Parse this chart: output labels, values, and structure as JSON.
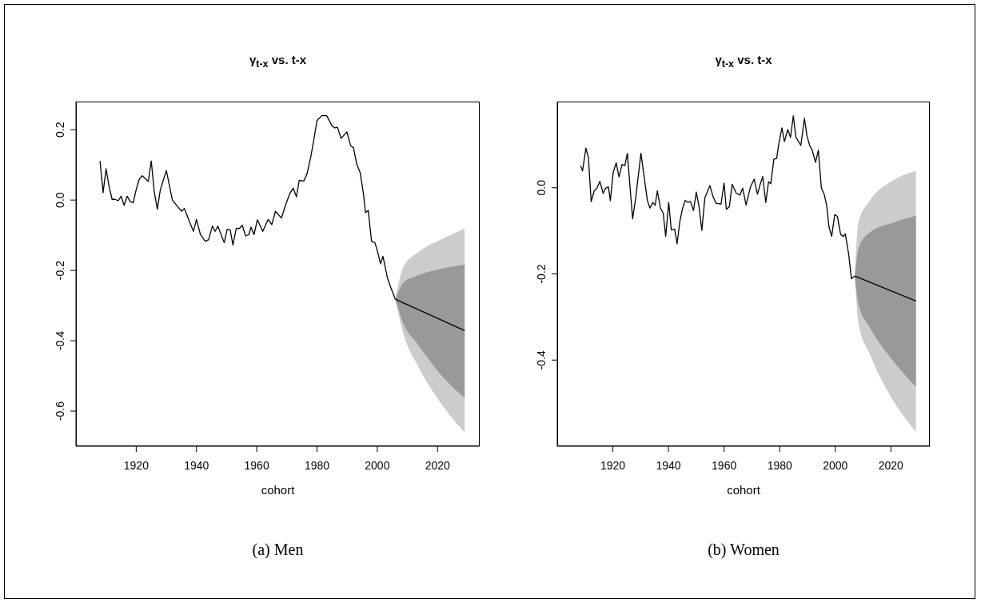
{
  "chart_data": [
    {
      "type": "line",
      "title": "γ$_{t-x}$ vs. t-x",
      "xlabel": "cohort",
      "xlim": [
        1900,
        2034
      ],
      "xticks": [
        1920,
        1940,
        1960,
        1980,
        2000,
        2020
      ],
      "ylim": [
        -0.7,
        0.28
      ],
      "yticks": [
        -0.6,
        -0.4,
        -0.2,
        {
          "value": 0,
          "label": "0.0"
        },
        0.2
      ],
      "annotations": [
        "(a) Men"
      ],
      "series": [
        {
          "type": "area",
          "color": "#cccccc",
          "x": [
            2006,
            2008.8,
            2013.2,
            2022,
            2029
          ],
          "values": [
            null,
            null,
            null,
            null,
            null
          ],
          "lower": [
            -0.282,
            -0.384,
            -0.467,
            -0.588,
            -0.661
          ],
          "upper": [
            -0.282,
            -0.188,
            -0.151,
            -0.109,
            -0.081
          ]
        },
        {
          "type": "area",
          "color": "#999999",
          "x": [
            2006,
            2008.8,
            2013.2,
            2022,
            2029
          ],
          "values": [
            null,
            null,
            null,
            null,
            null
          ],
          "lower": [
            -0.282,
            -0.354,
            -0.407,
            -0.505,
            -0.563
          ],
          "upper": [
            -0.282,
            -0.234,
            -0.215,
            -0.194,
            -0.183
          ]
        },
        {
          "type": "line",
          "color": "#000000",
          "x": [
            2006,
            2029
          ],
          "values": [
            -0.282,
            -0.371
          ]
        },
        {
          "type": "line",
          "color": "#000000",
          "x": [
            1908,
            1909,
            1910,
            1911,
            1912,
            1913,
            1914,
            1915,
            1916,
            1917,
            1918,
            1919,
            1920,
            1921,
            1922,
            1924,
            1925,
            1926,
            1927,
            1928,
            1930,
            1932,
            1935,
            1936,
            1937.6,
            1939,
            1940,
            1941.3,
            1942.9,
            1944,
            1945.3,
            1946.2,
            1947.1,
            1949.2,
            1950.2,
            1951.2,
            1952.1,
            1953.2,
            1954.2,
            1955.2,
            1956.3,
            1957.4,
            1958.1,
            1959.1,
            1960.2,
            1962,
            1963.8,
            1965,
            1966.2,
            1968.2,
            1969.7,
            1971,
            1972.1,
            1973.2,
            1974.1,
            1975.6,
            1976.7,
            1977.9,
            1978.9,
            1980,
            1981.6,
            1983.2,
            1985,
            1986,
            1986.8,
            1988,
            1989.9,
            1991.2,
            1992.1,
            1993.2,
            1994.3,
            1995.4,
            1996.1,
            1997,
            1998.1,
            1999.2,
            2000,
            2001.1,
            2001.9,
            2003.4,
            2004.4,
            2006
          ],
          "values": [
            0.111,
            0.021,
            0.089,
            0.038,
            0.002,
            0.002,
            -0.002,
            0.011,
            -0.015,
            0.011,
            -0.004,
            -0.008,
            0.03,
            0.059,
            0.069,
            0.053,
            0.111,
            0.023,
            -0.026,
            0.029,
            0.084,
            0.0,
            -0.032,
            -0.024,
            -0.06,
            -0.089,
            -0.055,
            -0.098,
            -0.117,
            -0.113,
            -0.074,
            -0.089,
            -0.074,
            -0.121,
            -0.083,
            -0.085,
            -0.128,
            -0.08,
            -0.081,
            -0.072,
            -0.102,
            -0.098,
            -0.077,
            -0.098,
            -0.056,
            -0.089,
            -0.055,
            -0.07,
            -0.032,
            -0.051,
            -0.011,
            0.019,
            0.034,
            0.009,
            0.056,
            0.054,
            0.075,
            0.121,
            0.169,
            0.226,
            0.24,
            0.24,
            0.211,
            0.205,
            0.207,
            0.175,
            0.194,
            0.154,
            0.149,
            0.102,
            0.079,
            0.019,
            -0.036,
            -0.029,
            -0.117,
            -0.121,
            -0.143,
            -0.181,
            -0.16,
            -0.222,
            -0.247,
            -0.282
          ]
        }
      ]
    },
    {
      "type": "line",
      "title": "γ$_{t-x}$ vs. t-x",
      "xlabel": "cohort",
      "xlim": [
        1900,
        2034
      ],
      "xticks": [
        1920,
        1940,
        1960,
        1980,
        2000,
        2020
      ],
      "ylim": [
        -0.6,
        0.2
      ],
      "yticks": [
        -0.4,
        -0.2,
        {
          "value": 0,
          "label": "0.0"
        }
      ],
      "annotations": [
        "(b) Women"
      ],
      "series": [
        {
          "type": "area",
          "color": "#cccccc",
          "x": [
            2007,
            2008.4,
            2012.2,
            2020.8,
            2029
          ],
          "values": [
            null,
            null,
            null,
            null,
            null
          ],
          "lower": [
            -0.205,
            -0.316,
            -0.383,
            -0.494,
            -0.566
          ],
          "upper": [
            -0.205,
            -0.078,
            -0.032,
            0.017,
            0.039
          ]
        },
        {
          "type": "area",
          "color": "#999999",
          "x": [
            2007,
            2008.4,
            2012.2,
            2020.8,
            2029
          ],
          "values": [
            null,
            null,
            null,
            null,
            null
          ],
          "lower": [
            -0.205,
            -0.273,
            -0.322,
            -0.402,
            -0.462
          ],
          "upper": [
            -0.205,
            -0.139,
            -0.105,
            -0.081,
            -0.065
          ]
        },
        {
          "type": "line",
          "color": "#000000",
          "x": [
            2007,
            2029
          ],
          "values": [
            -0.205,
            -0.263
          ]
        },
        {
          "type": "line",
          "color": "#000000",
          "x": [
            1908.4,
            1909.1,
            1910.3,
            1911.2,
            1912.2,
            1913.3,
            1914.3,
            1915.3,
            1916.5,
            1917.4,
            1918.4,
            1919.1,
            1920.1,
            1921.2,
            1922.2,
            1923.3,
            1924.3,
            1925.2,
            1927.1,
            1928.2,
            1930.1,
            1932.4,
            1933.3,
            1934.4,
            1935.2,
            1936,
            1937.1,
            1938.1,
            1939,
            1940.1,
            1941,
            1942.2,
            1943.1,
            1944.1,
            1945,
            1946,
            1946.9,
            1947.9,
            1949,
            1950,
            1951,
            1952,
            1953.1,
            1954.9,
            1956,
            1957.1,
            1958.9,
            1960,
            1960.8,
            1961.9,
            1962.9,
            1964.4,
            1965.7,
            1966.7,
            1967.9,
            1969.5,
            1970.8,
            1972,
            1973,
            1973.9,
            1975,
            1976,
            1976.8,
            1977.9,
            1978.9,
            1979.8,
            1980.8,
            1981.7,
            1982.9,
            1983.9,
            1984.9,
            1985.8,
            1987.6,
            1988.9,
            1989.8,
            1990.8,
            1991.7,
            1992.9,
            1993.9,
            1995,
            1996,
            1996.9,
            1997.7,
            1998.7,
            1999.8,
            2000.8,
            2001.9,
            2002.9,
            2003.6,
            2004.8,
            2005.8,
            2007
          ],
          "values": [
            0.051,
            0.039,
            0.092,
            0.07,
            -0.032,
            -0.007,
            -0.001,
            0.015,
            -0.013,
            -0.001,
            0.002,
            -0.03,
            0.035,
            0.058,
            0.025,
            0.054,
            0.051,
            0.08,
            -0.072,
            -0.024,
            0.08,
            -0.029,
            -0.047,
            -0.034,
            -0.041,
            -0.007,
            -0.047,
            -0.059,
            -0.113,
            -0.034,
            -0.098,
            -0.096,
            -0.13,
            -0.078,
            -0.05,
            -0.029,
            -0.034,
            -0.032,
            -0.053,
            -0.01,
            -0.044,
            -0.099,
            -0.023,
            0.005,
            -0.02,
            -0.036,
            -0.038,
            0.011,
            -0.05,
            -0.044,
            0.008,
            -0.013,
            -0.017,
            -0.001,
            -0.04,
            0.002,
            0.02,
            -0.015,
            0.008,
            0.026,
            -0.034,
            0.014,
            0.009,
            0.066,
            0.068,
            0.106,
            0.139,
            0.107,
            0.135,
            0.117,
            0.167,
            0.118,
            0.098,
            0.161,
            0.121,
            0.098,
            0.087,
            0.059,
            0.087,
            -0.001,
            -0.015,
            -0.041,
            -0.09,
            -0.113,
            -0.062,
            -0.067,
            -0.108,
            -0.113,
            -0.107,
            -0.154,
            -0.211,
            -0.205
          ]
        }
      ]
    }
  ]
}
